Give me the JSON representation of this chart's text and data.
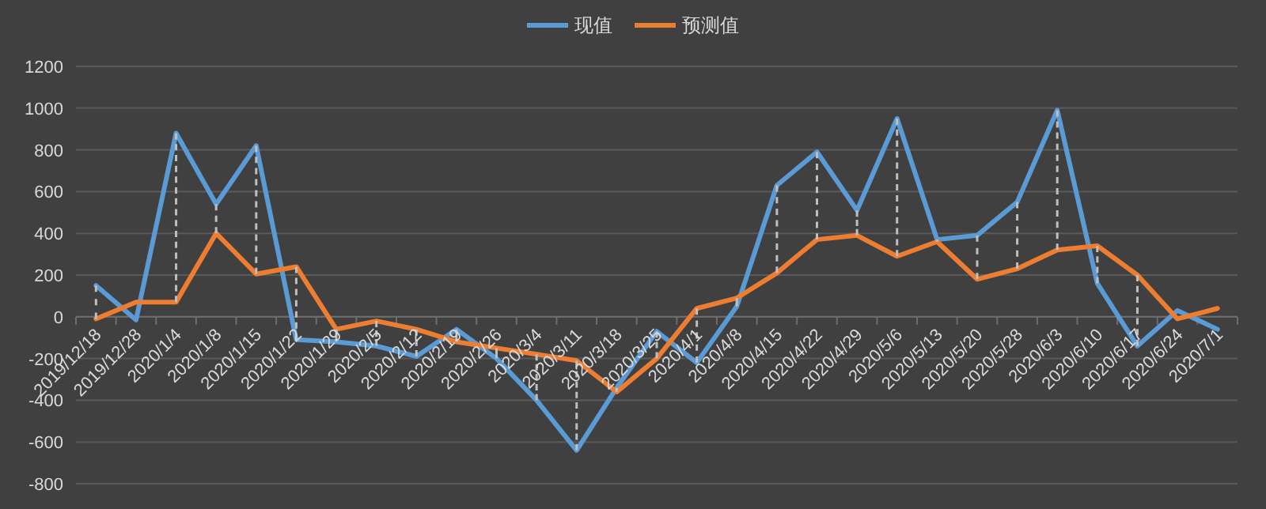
{
  "chart_data": {
    "type": "line",
    "categories": [
      "2019/12/18",
      "2019/12/28",
      "2020/1/4",
      "2020/1/8",
      "2020/1/15",
      "2020/1/22",
      "2020/1/29",
      "2020/2/5",
      "2020/2/12",
      "2020/2/19",
      "2020/2/26",
      "2020/3/4",
      "2020/3/11",
      "2020/3/18",
      "2020/3/25",
      "2020/4/1",
      "2020/4/8",
      "2020/4/15",
      "2020/4/22",
      "2020/4/29",
      "2020/5/6",
      "2020/5/13",
      "2020/5/20",
      "2020/5/28",
      "2020/6/3",
      "2020/6/10",
      "2020/6/17",
      "2020/6/24",
      "2020/7/1"
    ],
    "series": [
      {
        "name": "现值",
        "color": "#5b9bd5",
        "values": [
          150,
          -15,
          880,
          540,
          820,
          -110,
          -120,
          -140,
          -190,
          -60,
          -200,
          -400,
          -640,
          -340,
          -70,
          -220,
          50,
          630,
          790,
          510,
          950,
          370,
          390,
          550,
          990,
          160,
          -140,
          30,
          -60
        ],
        "errors": [
          [
            -10,
            150
          ],
          null,
          [
            70,
            880
          ],
          [
            400,
            540
          ],
          [
            205,
            820
          ],
          [
            -110,
            240
          ],
          [
            -120,
            -60
          ],
          [
            -140,
            -20
          ],
          [
            -190,
            -60
          ],
          [
            -120,
            -60
          ],
          [
            -200,
            -150
          ],
          [
            -400,
            -180
          ],
          [
            -640,
            -210
          ],
          [
            -360,
            -340
          ],
          [
            -200,
            -70
          ],
          [
            -220,
            40
          ],
          [
            50,
            90
          ],
          [
            210,
            630
          ],
          [
            370,
            790
          ],
          [
            390,
            510
          ],
          [
            290,
            950
          ],
          [
            360,
            370
          ],
          [
            180,
            390
          ],
          [
            230,
            550
          ],
          [
            320,
            990
          ],
          [
            160,
            340
          ],
          [
            -140,
            200
          ],
          null,
          null
        ]
      },
      {
        "name": "预测值",
        "color": "#ed7d31",
        "values": [
          -10,
          70,
          70,
          400,
          205,
          240,
          -60,
          -20,
          -60,
          -120,
          -150,
          -180,
          -210,
          -360,
          -200,
          40,
          90,
          210,
          370,
          390,
          290,
          360,
          180,
          230,
          320,
          340,
          200,
          -10,
          40
        ]
      }
    ],
    "ylim": [
      -800,
      1200
    ],
    "yticks": [
      -800,
      -600,
      -400,
      -200,
      0,
      200,
      400,
      600,
      800,
      1000,
      1200
    ],
    "grid": "y",
    "legend": "top",
    "marker": "none",
    "line_style": "solid"
  }
}
